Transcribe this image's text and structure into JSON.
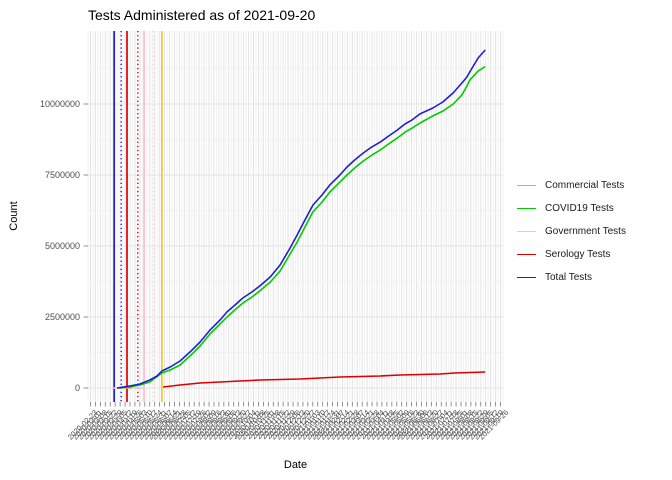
{
  "title": "Tests Administered as of 2021-09-20",
  "axes": {
    "x_label": "Date",
    "y_label": "Count",
    "y_ticks": [
      {
        "label": "0",
        "value": 0
      },
      {
        "label": "2500000",
        "value": 2500000
      },
      {
        "label": "5000000",
        "value": 5000000
      },
      {
        "label": "7500000",
        "value": 7500000
      },
      {
        "label": "10000000",
        "value": 10000000
      }
    ],
    "x_tick_dates": [
      "2020-02-23",
      "2020-03-01",
      "2020-03-08",
      "2020-03-15",
      "2020-03-22",
      "2020-03-29",
      "2020-04-05",
      "2020-04-12",
      "2020-04-19",
      "2020-04-26",
      "2020-05-03",
      "2020-05-10",
      "2020-05-17",
      "2020-05-24",
      "2020-05-31",
      "2020-06-07",
      "2020-06-14",
      "2020-06-21",
      "2020-06-28",
      "2020-07-05",
      "2020-07-12",
      "2020-07-19",
      "2020-07-26",
      "2020-08-02",
      "2020-08-09",
      "2020-08-16",
      "2020-08-23",
      "2020-08-30",
      "2020-09-06",
      "2020-09-13",
      "2020-09-20",
      "2020-09-27",
      "2020-10-04",
      "2020-10-11",
      "2020-10-18",
      "2020-10-25",
      "2020-11-01",
      "2020-11-08",
      "2020-11-15",
      "2020-11-22",
      "2020-11-29",
      "2020-12-06",
      "2020-12-13",
      "2020-12-20",
      "2020-12-27",
      "2021-01-03",
      "2021-01-10",
      "2021-01-17",
      "2021-01-24",
      "2021-01-31",
      "2021-02-07",
      "2021-02-14",
      "2021-02-21",
      "2021-02-28",
      "2021-03-07",
      "2021-03-14",
      "2021-03-21",
      "2021-03-28",
      "2021-04-04",
      "2021-04-11",
      "2021-04-18",
      "2021-04-25",
      "2021-05-02",
      "2021-05-09",
      "2021-05-16",
      "2021-05-23",
      "2021-05-30",
      "2021-06-06",
      "2021-06-13",
      "2021-06-20",
      "2021-06-27",
      "2021-07-04",
      "2021-07-11",
      "2021-07-18",
      "2021-07-25",
      "2021-08-01",
      "2021-08-08",
      "2021-08-15",
      "2021-08-22",
      "2021-08-29",
      "2021-09-05",
      "2021-09-12",
      "2021-09-19",
      "2021-09-26"
    ]
  },
  "legend": {
    "items": [
      {
        "label": "Commercial Tests",
        "color": "#FFA500"
      },
      {
        "label": "COVID19 Tests",
        "color": "#00CC00"
      },
      {
        "label": "Government Tests",
        "color": "#FFC0CB"
      },
      {
        "label": "Serology Tests",
        "color": "#DD0000"
      },
      {
        "label": "Total Tests",
        "color": "#2020D0"
      }
    ]
  },
  "chart_data": {
    "type": "line",
    "title": "Tests Administered as of 2021-09-20",
    "xlabel": "Date",
    "ylabel": "Count",
    "x_range": [
      "2020-02-23",
      "2021-09-26"
    ],
    "ylim": [
      0,
      12100000
    ],
    "grid": true,
    "legend_position": "right",
    "note": "points are [t, count] where t = fraction along the x (date) axis from 2020-02-23 (0) to 2021-09-26 (1)",
    "series": [
      {
        "name": "Government Tests",
        "color": "#FFC0CB",
        "points": [
          [
            0.058,
            4000
          ],
          [
            0.133,
            4000
          ]
        ]
      },
      {
        "name": "Commercial Tests",
        "color": "#FFA500",
        "points": [
          [
            0.077,
            10000
          ],
          [
            0.106,
            10000
          ]
        ]
      },
      {
        "name": "Serology Tests",
        "color": "#DD0000",
        "points": [
          [
            0.181,
            35000
          ],
          [
            0.222,
            105000
          ],
          [
            0.27,
            176000
          ],
          [
            0.318,
            211000
          ],
          [
            0.366,
            246000
          ],
          [
            0.414,
            282000
          ],
          [
            0.463,
            300000
          ],
          [
            0.511,
            317000
          ],
          [
            0.559,
            352000
          ],
          [
            0.607,
            387000
          ],
          [
            0.655,
            405000
          ],
          [
            0.704,
            422000
          ],
          [
            0.752,
            458000
          ],
          [
            0.8,
            475000
          ],
          [
            0.848,
            493000
          ],
          [
            0.884,
            528000
          ],
          [
            0.92,
            546000
          ],
          [
            0.957,
            563000
          ]
        ]
      },
      {
        "name": "COVID19 Tests",
        "color": "#00CC00",
        "points": [
          [
            0.07,
            0
          ],
          [
            0.101,
            35000
          ],
          [
            0.125,
            106000
          ],
          [
            0.149,
            211000
          ],
          [
            0.178,
            528000
          ],
          [
            0.198,
            634000
          ],
          [
            0.222,
            810000
          ],
          [
            0.246,
            1130000
          ],
          [
            0.27,
            1480000
          ],
          [
            0.294,
            1900000
          ],
          [
            0.318,
            2250000
          ],
          [
            0.335,
            2500000
          ],
          [
            0.354,
            2750000
          ],
          [
            0.373,
            2990000
          ],
          [
            0.395,
            3200000
          ],
          [
            0.414,
            3420000
          ],
          [
            0.439,
            3730000
          ],
          [
            0.463,
            4120000
          ],
          [
            0.487,
            4720000
          ],
          [
            0.504,
            5140000
          ],
          [
            0.523,
            5670000
          ],
          [
            0.542,
            6200000
          ],
          [
            0.564,
            6550000
          ],
          [
            0.583,
            6900000
          ],
          [
            0.607,
            7250000
          ],
          [
            0.624,
            7500000
          ],
          [
            0.643,
            7750000
          ],
          [
            0.663,
            7990000
          ],
          [
            0.684,
            8200000
          ],
          [
            0.704,
            8380000
          ],
          [
            0.728,
            8630000
          ],
          [
            0.745,
            8800000
          ],
          [
            0.764,
            9010000
          ],
          [
            0.781,
            9150000
          ],
          [
            0.8,
            9330000
          ],
          [
            0.831,
            9580000
          ],
          [
            0.855,
            9750000
          ],
          [
            0.88,
            10000000
          ],
          [
            0.901,
            10320000
          ],
          [
            0.913,
            10630000
          ],
          [
            0.92,
            10840000
          ],
          [
            0.94,
            11160000
          ],
          [
            0.957,
            11320000
          ]
        ]
      },
      {
        "name": "Total Tests",
        "color": "#2020D0",
        "points": [
          [
            0.07,
            0
          ],
          [
            0.101,
            70000
          ],
          [
            0.125,
            140000
          ],
          [
            0.149,
            280000
          ],
          [
            0.166,
            420000
          ],
          [
            0.178,
            600000
          ],
          [
            0.198,
            740000
          ],
          [
            0.222,
            950000
          ],
          [
            0.246,
            1270000
          ],
          [
            0.27,
            1620000
          ],
          [
            0.294,
            2040000
          ],
          [
            0.318,
            2390000
          ],
          [
            0.335,
            2680000
          ],
          [
            0.354,
            2920000
          ],
          [
            0.373,
            3170000
          ],
          [
            0.395,
            3380000
          ],
          [
            0.414,
            3590000
          ],
          [
            0.439,
            3910000
          ],
          [
            0.463,
            4330000
          ],
          [
            0.487,
            4930000
          ],
          [
            0.504,
            5390000
          ],
          [
            0.523,
            5920000
          ],
          [
            0.542,
            6440000
          ],
          [
            0.564,
            6800000
          ],
          [
            0.583,
            7150000
          ],
          [
            0.607,
            7500000
          ],
          [
            0.624,
            7780000
          ],
          [
            0.643,
            8030000
          ],
          [
            0.663,
            8270000
          ],
          [
            0.684,
            8490000
          ],
          [
            0.704,
            8660000
          ],
          [
            0.728,
            8910000
          ],
          [
            0.745,
            9080000
          ],
          [
            0.764,
            9300000
          ],
          [
            0.781,
            9440000
          ],
          [
            0.8,
            9650000
          ],
          [
            0.831,
            9860000
          ],
          [
            0.855,
            10070000
          ],
          [
            0.88,
            10390000
          ],
          [
            0.901,
            10740000
          ],
          [
            0.913,
            10950000
          ],
          [
            0.92,
            11130000
          ],
          [
            0.94,
            11620000
          ],
          [
            0.957,
            11900000
          ]
        ]
      }
    ],
    "vlines": [
      {
        "t": 0.063,
        "color": "#2020D0",
        "style": "solid"
      },
      {
        "t": 0.08,
        "color": "#2020D0",
        "style": "dotted"
      },
      {
        "t": 0.094,
        "color": "#DD0000",
        "style": "solid"
      },
      {
        "t": 0.12,
        "color": "#DD0000",
        "style": "dotted"
      },
      {
        "t": 0.135,
        "color": "#FFC0CB",
        "style": "solid"
      },
      {
        "t": 0.157,
        "color": "#FFD6DE",
        "style": "dotted"
      },
      {
        "t": 0.178,
        "color": "#FFC125",
        "style": "solid"
      }
    ]
  }
}
